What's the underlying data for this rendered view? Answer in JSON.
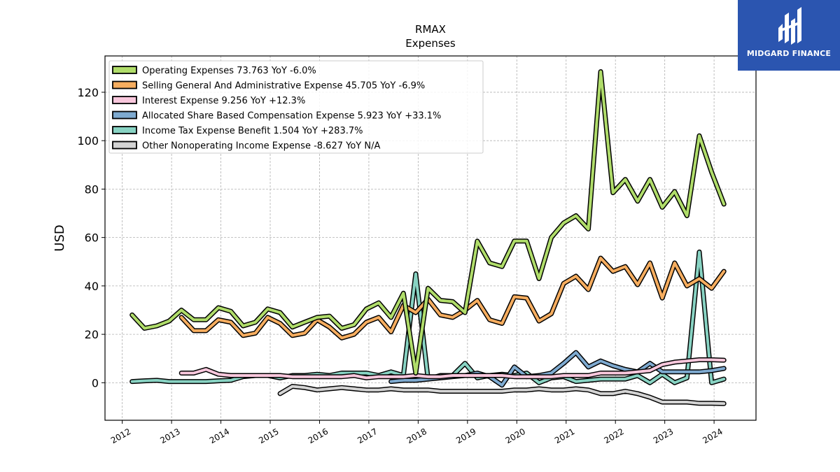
{
  "brand": {
    "name": "MIDGARD FINANCE",
    "color": "#2b55b0"
  },
  "chart_data": {
    "type": "line",
    "title": "RMAX",
    "subtitle": "Expenses",
    "xlabel": "",
    "ylabel": "USD",
    "xlim": [
      2011.65,
      2024.85
    ],
    "ylim": [
      -15.5,
      135
    ],
    "x_ticks": [
      "2012",
      "2013",
      "2014",
      "2015",
      "2016",
      "2017",
      "2018",
      "2019",
      "2020",
      "2021",
      "2022",
      "2023",
      "2024"
    ],
    "y_ticks": [
      0,
      20,
      40,
      60,
      80,
      100,
      120
    ],
    "grid": true,
    "legend_position": "top-left",
    "series": [
      {
        "name": "Operating Expenses",
        "legend": "Operating Expenses  73.763 YoY -6.0%",
        "color": "#b0dd6a",
        "points": [
          [
            2012.2,
            28
          ],
          [
            2012.45,
            22.5
          ],
          [
            2012.7,
            23.5
          ],
          [
            2012.95,
            25.5
          ],
          [
            2013.2,
            30
          ],
          [
            2013.45,
            26
          ],
          [
            2013.7,
            26
          ],
          [
            2013.95,
            31
          ],
          [
            2014.2,
            29.5
          ],
          [
            2014.45,
            23.5
          ],
          [
            2014.7,
            25
          ],
          [
            2014.95,
            30.5
          ],
          [
            2015.2,
            29
          ],
          [
            2015.45,
            23
          ],
          [
            2015.7,
            25
          ],
          [
            2015.95,
            27
          ],
          [
            2016.2,
            27.5
          ],
          [
            2016.45,
            22.5
          ],
          [
            2016.7,
            24
          ],
          [
            2016.95,
            30.5
          ],
          [
            2017.2,
            33
          ],
          [
            2017.45,
            27
          ],
          [
            2017.7,
            37
          ],
          [
            2017.95,
            4
          ],
          [
            2018.2,
            39
          ],
          [
            2018.45,
            34
          ],
          [
            2018.7,
            33.5
          ],
          [
            2018.95,
            29
          ],
          [
            2019.2,
            58.5
          ],
          [
            2019.45,
            49.5
          ],
          [
            2019.7,
            48
          ],
          [
            2019.95,
            58.5
          ],
          [
            2020.2,
            58.5
          ],
          [
            2020.45,
            43
          ],
          [
            2020.7,
            60
          ],
          [
            2020.95,
            66
          ],
          [
            2021.2,
            69
          ],
          [
            2021.45,
            63.5
          ],
          [
            2021.7,
            128.5
          ],
          [
            2021.95,
            78.5
          ],
          [
            2022.2,
            84
          ],
          [
            2022.45,
            75
          ],
          [
            2022.7,
            84
          ],
          [
            2022.95,
            72.5
          ],
          [
            2023.2,
            79
          ],
          [
            2023.45,
            69
          ],
          [
            2023.7,
            102
          ],
          [
            2023.95,
            87
          ],
          [
            2024.2,
            73.8
          ]
        ]
      },
      {
        "name": "Selling General And Administrative Expense",
        "legend": "Selling General And Administrative Expense  45.705 YoY -6.9%",
        "color": "#f6ad5f",
        "points": [
          [
            2013.2,
            27
          ],
          [
            2013.45,
            21.5
          ],
          [
            2013.7,
            21.5
          ],
          [
            2013.95,
            26
          ],
          [
            2014.2,
            25
          ],
          [
            2014.45,
            19.5
          ],
          [
            2014.7,
            20.5
          ],
          [
            2014.95,
            27
          ],
          [
            2015.2,
            24.5
          ],
          [
            2015.45,
            19.5
          ],
          [
            2015.7,
            20.5
          ],
          [
            2015.95,
            26
          ],
          [
            2016.2,
            23
          ],
          [
            2016.45,
            18.5
          ],
          [
            2016.7,
            20
          ],
          [
            2016.95,
            25
          ],
          [
            2017.2,
            27
          ],
          [
            2017.45,
            21
          ],
          [
            2017.7,
            32
          ],
          [
            2017.95,
            29
          ],
          [
            2018.2,
            34.5
          ],
          [
            2018.45,
            28
          ],
          [
            2018.7,
            27
          ],
          [
            2018.95,
            30
          ],
          [
            2019.2,
            34
          ],
          [
            2019.45,
            26
          ],
          [
            2019.7,
            24.5
          ],
          [
            2019.95,
            35.5
          ],
          [
            2020.2,
            35
          ],
          [
            2020.45,
            25.5
          ],
          [
            2020.7,
            28.5
          ],
          [
            2020.95,
            41
          ],
          [
            2021.2,
            44
          ],
          [
            2021.45,
            38.5
          ],
          [
            2021.7,
            51.5
          ],
          [
            2021.95,
            46
          ],
          [
            2022.2,
            48
          ],
          [
            2022.45,
            40.5
          ],
          [
            2022.7,
            49.5
          ],
          [
            2022.95,
            35
          ],
          [
            2023.2,
            49.5
          ],
          [
            2023.45,
            40
          ],
          [
            2023.7,
            43
          ],
          [
            2023.95,
            39
          ],
          [
            2024.2,
            46
          ]
        ]
      },
      {
        "name": "Interest Expense",
        "legend": "Interest Expense  9.256 YoY +12.3%",
        "color": "#f8c7dc",
        "points": [
          [
            2013.2,
            4
          ],
          [
            2013.45,
            4
          ],
          [
            2013.7,
            5.5
          ],
          [
            2013.95,
            3.5
          ],
          [
            2014.2,
            3
          ],
          [
            2014.45,
            3
          ],
          [
            2014.7,
            3
          ],
          [
            2014.95,
            3
          ],
          [
            2015.2,
            3
          ],
          [
            2015.45,
            2.5
          ],
          [
            2015.7,
            2.5
          ],
          [
            2015.95,
            2.5
          ],
          [
            2016.2,
            2.5
          ],
          [
            2016.45,
            2.5
          ],
          [
            2016.7,
            3
          ],
          [
            2016.95,
            2
          ],
          [
            2017.2,
            2.5
          ],
          [
            2017.45,
            2.5
          ],
          [
            2017.7,
            2.5
          ],
          [
            2017.95,
            3
          ],
          [
            2018.2,
            2.5
          ],
          [
            2018.45,
            2.5
          ],
          [
            2018.7,
            3
          ],
          [
            2018.95,
            3
          ],
          [
            2019.2,
            3
          ],
          [
            2019.45,
            3
          ],
          [
            2019.7,
            3
          ],
          [
            2019.95,
            2.5
          ],
          [
            2020.2,
            2.5
          ],
          [
            2020.45,
            2.5
          ],
          [
            2020.7,
            2.5
          ],
          [
            2020.95,
            3
          ],
          [
            2021.2,
            3
          ],
          [
            2021.45,
            3
          ],
          [
            2021.7,
            4
          ],
          [
            2021.95,
            4
          ],
          [
            2022.2,
            4
          ],
          [
            2022.45,
            4.5
          ],
          [
            2022.7,
            5
          ],
          [
            2022.95,
            7.5
          ],
          [
            2023.2,
            8.5
          ],
          [
            2023.45,
            9
          ],
          [
            2023.7,
            9.5
          ],
          [
            2023.95,
            9.5
          ],
          [
            2024.2,
            9.3
          ]
        ]
      },
      {
        "name": "Allocated Share Based Compensation Expense",
        "legend": "Allocated Share Based Compensation Expense  5.923 YoY +33.1%",
        "color": "#7eaad0",
        "points": [
          [
            2017.45,
            0.5
          ],
          [
            2017.7,
            1
          ],
          [
            2017.95,
            1
          ],
          [
            2018.2,
            1.5
          ],
          [
            2018.45,
            2
          ],
          [
            2018.7,
            2.5
          ],
          [
            2018.95,
            3
          ],
          [
            2019.2,
            4
          ],
          [
            2019.45,
            2.5
          ],
          [
            2019.7,
            -1
          ],
          [
            2019.95,
            6.5
          ],
          [
            2020.2,
            2.5
          ],
          [
            2020.45,
            3
          ],
          [
            2020.7,
            4
          ],
          [
            2020.95,
            8
          ],
          [
            2021.2,
            12.5
          ],
          [
            2021.45,
            6.5
          ],
          [
            2021.7,
            9
          ],
          [
            2021.95,
            7
          ],
          [
            2022.2,
            5.5
          ],
          [
            2022.45,
            4.5
          ],
          [
            2022.7,
            8
          ],
          [
            2022.95,
            4.5
          ],
          [
            2023.2,
            4.5
          ],
          [
            2023.45,
            4.5
          ],
          [
            2023.7,
            4.5
          ],
          [
            2023.95,
            5
          ],
          [
            2024.2,
            5.9
          ]
        ]
      },
      {
        "name": "Income Tax Expense Benefit",
        "legend": "Income Tax Expense Benefit  1.504 YoY +283.7%",
        "color": "#88d3c3",
        "points": [
          [
            2012.2,
            0.5
          ],
          [
            2012.45,
            0.8
          ],
          [
            2012.7,
            1
          ],
          [
            2012.95,
            0.5
          ],
          [
            2013.2,
            0.5
          ],
          [
            2013.45,
            0.5
          ],
          [
            2013.7,
            0.5
          ],
          [
            2013.95,
            0.8
          ],
          [
            2014.2,
            1
          ],
          [
            2014.45,
            2.5
          ],
          [
            2014.7,
            3
          ],
          [
            2014.95,
            3
          ],
          [
            2015.2,
            2
          ],
          [
            2015.45,
            3
          ],
          [
            2015.7,
            3
          ],
          [
            2015.95,
            3.5
          ],
          [
            2016.2,
            3
          ],
          [
            2016.45,
            4
          ],
          [
            2016.7,
            4
          ],
          [
            2016.95,
            4
          ],
          [
            2017.2,
            3
          ],
          [
            2017.45,
            4.5
          ],
          [
            2017.7,
            3
          ],
          [
            2017.95,
            45
          ],
          [
            2018.2,
            1.5
          ],
          [
            2018.45,
            3
          ],
          [
            2018.7,
            3
          ],
          [
            2018.95,
            8
          ],
          [
            2019.2,
            2
          ],
          [
            2019.45,
            3
          ],
          [
            2019.7,
            3.5
          ],
          [
            2019.95,
            3
          ],
          [
            2020.2,
            4
          ],
          [
            2020.45,
            0
          ],
          [
            2020.7,
            2
          ],
          [
            2020.95,
            2.5
          ],
          [
            2021.2,
            0.5
          ],
          [
            2021.45,
            1
          ],
          [
            2021.7,
            1.5
          ],
          [
            2021.95,
            1.5
          ],
          [
            2022.2,
            1.5
          ],
          [
            2022.45,
            3
          ],
          [
            2022.7,
            0
          ],
          [
            2022.95,
            3.5
          ],
          [
            2023.2,
            0
          ],
          [
            2023.45,
            2
          ],
          [
            2023.7,
            54
          ],
          [
            2023.95,
            0
          ],
          [
            2024.2,
            1.5
          ]
        ]
      },
      {
        "name": "Other Nonoperating Income Expense",
        "legend": "Other Nonoperating Income Expense  -8.627 YoY N/A",
        "color": "#d4d4d4",
        "points": [
          [
            2015.2,
            -4.5
          ],
          [
            2015.45,
            -1.5
          ],
          [
            2015.7,
            -2
          ],
          [
            2015.95,
            -3
          ],
          [
            2016.2,
            -2.5
          ],
          [
            2016.45,
            -2
          ],
          [
            2016.7,
            -2.5
          ],
          [
            2016.95,
            -3
          ],
          [
            2017.2,
            -3
          ],
          [
            2017.45,
            -2.5
          ],
          [
            2017.7,
            -3
          ],
          [
            2017.95,
            -3
          ],
          [
            2018.2,
            -3
          ],
          [
            2018.45,
            -3.5
          ],
          [
            2018.7,
            -3.5
          ],
          [
            2018.95,
            -3.5
          ],
          [
            2019.2,
            -3.5
          ],
          [
            2019.45,
            -3.5
          ],
          [
            2019.7,
            -3.5
          ],
          [
            2019.95,
            -3
          ],
          [
            2020.2,
            -3
          ],
          [
            2020.45,
            -2.5
          ],
          [
            2020.7,
            -3
          ],
          [
            2020.95,
            -3
          ],
          [
            2021.2,
            -2.5
          ],
          [
            2021.45,
            -3
          ],
          [
            2021.7,
            -4.5
          ],
          [
            2021.95,
            -4.5
          ],
          [
            2022.2,
            -3.5
          ],
          [
            2022.45,
            -4.5
          ],
          [
            2022.7,
            -6
          ],
          [
            2022.95,
            -8
          ],
          [
            2023.2,
            -8
          ],
          [
            2023.45,
            -8
          ],
          [
            2023.7,
            -8.5
          ],
          [
            2023.95,
            -8.5
          ],
          [
            2024.2,
            -8.6
          ]
        ]
      }
    ]
  }
}
